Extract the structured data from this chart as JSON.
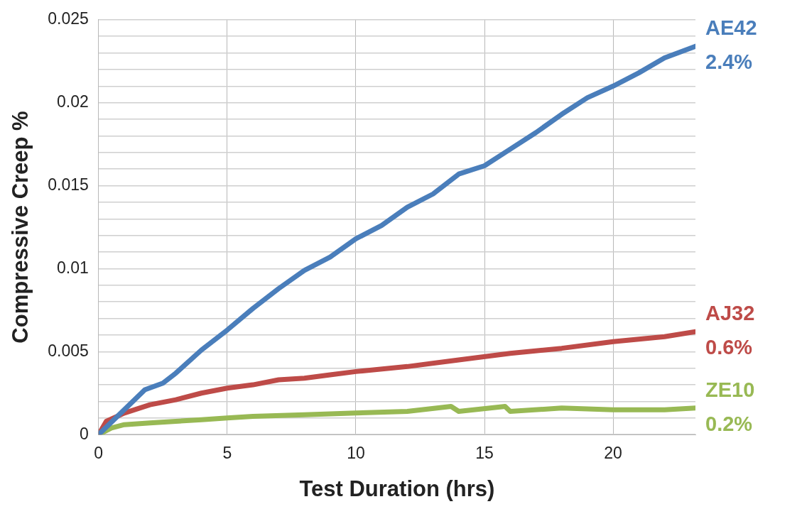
{
  "chart_data": {
    "type": "line",
    "xlabel": "Test Duration (hrs)",
    "ylabel": "Compressive Creep %",
    "xlim": [
      0,
      23.2
    ],
    "xticks": [
      0,
      5,
      10,
      15,
      20
    ],
    "ylim": [
      0,
      0.025
    ],
    "yticks": [
      0,
      {
        "value": 0.001,
        "label": null
      },
      {
        "value": 0.002,
        "label": null
      },
      {
        "value": 0.003,
        "label": null
      },
      {
        "value": 0.004,
        "label": null
      },
      0.005,
      {
        "value": 0.006,
        "label": null
      },
      {
        "value": 0.007,
        "label": null
      },
      {
        "value": 0.008,
        "label": null
      },
      {
        "value": 0.009,
        "label": null
      },
      0.01,
      {
        "value": 0.011,
        "label": null
      },
      {
        "value": 0.012,
        "label": null
      },
      {
        "value": 0.013,
        "label": null
      },
      {
        "value": 0.014,
        "label": null
      },
      0.015,
      {
        "value": 0.016,
        "label": null
      },
      {
        "value": 0.017,
        "label": null
      },
      {
        "value": 0.018,
        "label": null
      },
      {
        "value": 0.019,
        "label": null
      },
      0.02,
      {
        "value": 0.021,
        "label": null
      },
      {
        "value": 0.022,
        "label": null
      },
      {
        "value": 0.023,
        "label": null
      },
      {
        "value": 0.024,
        "label": null
      },
      0.025
    ],
    "grid": true,
    "legend": false,
    "marker": "none",
    "line_style": "solid",
    "series": [
      {
        "name": "AE42",
        "color": "#4a7ebb",
        "x": [
          0,
          1,
          1.8,
          2.5,
          3,
          4,
          5,
          6,
          7,
          8,
          9,
          10,
          11,
          12,
          13,
          14,
          15,
          16,
          17,
          18,
          19,
          20,
          21,
          22,
          23.2
        ],
        "values": [
          0,
          0.0015,
          0.0027,
          0.0031,
          0.0037,
          0.0051,
          0.0063,
          0.0076,
          0.0088,
          0.0099,
          0.0107,
          0.0118,
          0.0126,
          0.0137,
          0.0145,
          0.0157,
          0.0162,
          0.0172,
          0.0182,
          0.0193,
          0.0203,
          0.021,
          0.0218,
          0.0227,
          0.0234
        ]
      },
      {
        "name": "AJ32",
        "color": "#be4b48",
        "x": [
          0,
          0.3,
          1,
          2,
          3,
          4,
          5,
          6,
          7,
          8,
          9,
          10,
          12,
          14,
          16,
          18,
          20,
          22,
          23.2
        ],
        "values": [
          0,
          0.0008,
          0.0013,
          0.0018,
          0.0021,
          0.0025,
          0.0028,
          0.003,
          0.0033,
          0.0034,
          0.0036,
          0.0038,
          0.0041,
          0.0045,
          0.0049,
          0.0052,
          0.0056,
          0.0059,
          0.0062
        ]
      },
      {
        "name": "ZE10",
        "color": "#98b954",
        "x": [
          0,
          0.5,
          1,
          2,
          3,
          4,
          5,
          6,
          8,
          10,
          12,
          13.7,
          14,
          15.8,
          16,
          18,
          20,
          22,
          23.2
        ],
        "values": [
          0,
          0.0004,
          0.0006,
          0.0007,
          0.0008,
          0.0009,
          0.001,
          0.0011,
          0.0012,
          0.0013,
          0.0014,
          0.0017,
          0.0014,
          0.0017,
          0.0014,
          0.0016,
          0.0015,
          0.0015,
          0.0016
        ]
      }
    ],
    "annotations": [
      "2.4%",
      "0.6%",
      "0.2%"
    ]
  }
}
